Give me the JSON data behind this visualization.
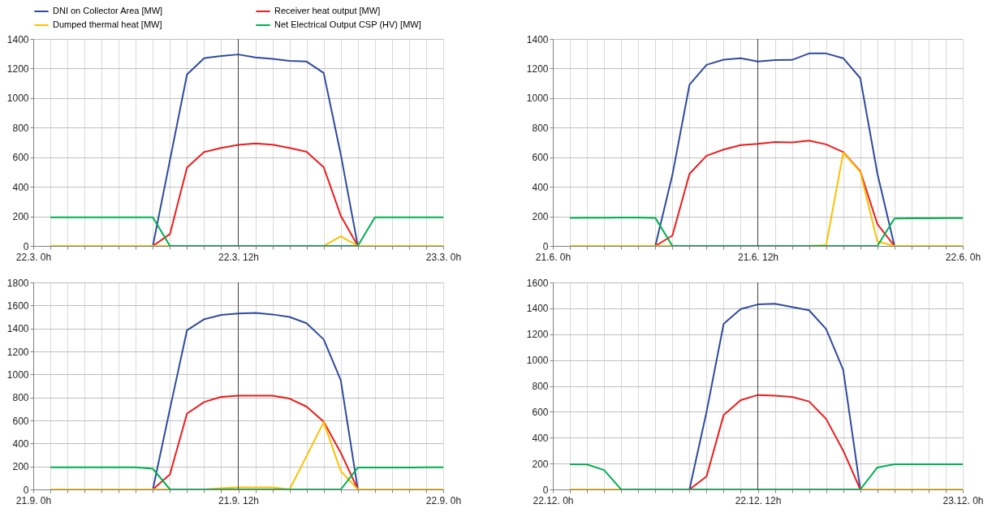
{
  "chart_data": [
    {
      "type": "line",
      "categories": [
        "22.3. 0h",
        null,
        null,
        null,
        null,
        null,
        null,
        null,
        null,
        null,
        null,
        null,
        "22.3. 12h",
        null,
        null,
        null,
        null,
        null,
        null,
        null,
        null,
        null,
        null,
        null,
        "23.3. 0h"
      ],
      "ylim": [
        0,
        1400
      ],
      "yticks": [
        0,
        200,
        400,
        600,
        800,
        1000,
        1200,
        1400
      ],
      "grid": true,
      "legend": "top",
      "ref_lines": [
        {
          "axis": "x",
          "value": "22.3. 12h"
        }
      ],
      "series": [
        {
          "name": "DNI on Collector Area [MW]",
          "color": "#2f4b9f",
          "values": [
            null,
            null,
            null,
            null,
            null,
            null,
            null,
            0,
            580,
            1160,
            1270,
            1285,
            1295,
            1275,
            1265,
            1252,
            1247,
            1170,
            620,
            0,
            null,
            null,
            null,
            null,
            null
          ]
        },
        {
          "name": "Receiver heat output [MW]",
          "color": "#ee1c1c",
          "values": [
            null,
            null,
            null,
            null,
            null,
            null,
            null,
            0,
            80,
            530,
            635,
            663,
            683,
            693,
            685,
            663,
            637,
            533,
            205,
            0,
            null,
            null,
            null,
            null,
            null
          ]
        },
        {
          "name": "Dumped thermal heat [MW]",
          "color": "#ffc000",
          "values": [
            null,
            0,
            0,
            0,
            0,
            0,
            0,
            0,
            0,
            null,
            null,
            null,
            null,
            null,
            null,
            null,
            null,
            0,
            65,
            0,
            0,
            0,
            0,
            0,
            0
          ]
        },
        {
          "name": "Net Electrical Output CSP (HV) [MW]",
          "color": "#00b050",
          "values": [
            null,
            193,
            193,
            193,
            193,
            193,
            193,
            193,
            0,
            0,
            0,
            0,
            0,
            0,
            0,
            0,
            0,
            0,
            0,
            0,
            193,
            193,
            193,
            193,
            193
          ]
        }
      ]
    },
    {
      "type": "line",
      "categories": [
        "21.6. 0h",
        null,
        null,
        null,
        null,
        null,
        null,
        null,
        null,
        null,
        null,
        null,
        "21.6. 12h",
        null,
        null,
        null,
        null,
        null,
        null,
        null,
        null,
        null,
        null,
        null,
        "22.6. 0h"
      ],
      "ylim": [
        0,
        1400
      ],
      "yticks": [
        0,
        200,
        400,
        600,
        800,
        1000,
        1200,
        1400
      ],
      "grid": true,
      "legend": "top",
      "ref_lines": [
        {
          "axis": "x",
          "value": "21.6. 12h"
        }
      ],
      "series": [
        {
          "name": "DNI on Collector Area [MW]",
          "color": "#2f4b9f",
          "values": [
            null,
            null,
            null,
            null,
            null,
            null,
            0,
            480,
            1090,
            1225,
            1260,
            1270,
            1248,
            1257,
            1258,
            1302,
            1302,
            1270,
            1135,
            490,
            0,
            null,
            null,
            null,
            null
          ]
        },
        {
          "name": "Receiver heat output [MW]",
          "color": "#ee1c1c",
          "values": [
            null,
            null,
            null,
            null,
            null,
            null,
            0,
            70,
            487,
            610,
            652,
            682,
            690,
            703,
            700,
            712,
            687,
            635,
            505,
            148,
            0,
            null,
            null,
            null,
            null
          ]
        },
        {
          "name": "Dumped thermal heat [MW]",
          "color": "#ffc000",
          "values": [
            null,
            0,
            0,
            0,
            0,
            0,
            0,
            0,
            null,
            null,
            null,
            null,
            null,
            null,
            null,
            0,
            5,
            630,
            500,
            30,
            0,
            0,
            0,
            0,
            0
          ]
        },
        {
          "name": "Net Electrical Output CSP (HV) [MW]",
          "color": "#00b050",
          "values": [
            null,
            190,
            191,
            191,
            192,
            192,
            190,
            0,
            0,
            0,
            0,
            0,
            0,
            0,
            0,
            0,
            0,
            0,
            0,
            0,
            185,
            186,
            187,
            188,
            188
          ]
        }
      ]
    },
    {
      "type": "line",
      "categories": [
        "21.9. 0h",
        null,
        null,
        null,
        null,
        null,
        null,
        null,
        null,
        null,
        null,
        null,
        "21.9. 12h",
        null,
        null,
        null,
        null,
        null,
        null,
        null,
        null,
        null,
        null,
        null,
        "22.9. 0h"
      ],
      "ylim": [
        0,
        1800
      ],
      "yticks": [
        0,
        200,
        400,
        600,
        800,
        1000,
        1200,
        1400,
        1600,
        1800
      ],
      "grid": true,
      "ref_lines": [
        {
          "axis": "x",
          "value": "21.9. 12h"
        }
      ],
      "series": [
        {
          "name": "DNI on Collector Area [MW]",
          "color": "#2f4b9f",
          "values": [
            null,
            null,
            null,
            null,
            null,
            null,
            null,
            0,
            700,
            1385,
            1480,
            1518,
            1530,
            1535,
            1522,
            1500,
            1445,
            1305,
            950,
            0,
            null,
            null,
            null,
            null,
            null
          ]
        },
        {
          "name": "Receiver heat output [MW]",
          "color": "#ee1c1c",
          "values": [
            null,
            null,
            null,
            null,
            null,
            null,
            null,
            0,
            130,
            660,
            760,
            805,
            815,
            815,
            815,
            790,
            720,
            590,
            320,
            0,
            null,
            null,
            null,
            null,
            null
          ]
        },
        {
          "name": "Dumped thermal heat [MW]",
          "color": "#ffc000",
          "values": [
            null,
            0,
            0,
            0,
            0,
            0,
            0,
            0,
            0,
            null,
            0,
            10,
            18,
            18,
            18,
            0,
            290,
            585,
            160,
            0,
            0,
            0,
            0,
            0,
            0
          ]
        },
        {
          "name": "Net Electrical Output CSP (HV) [MW]",
          "color": "#00b050",
          "values": [
            null,
            193,
            193,
            193,
            193,
            193,
            193,
            180,
            0,
            0,
            0,
            0,
            0,
            0,
            0,
            0,
            0,
            0,
            0,
            190,
            190,
            191,
            191,
            192,
            192
          ]
        }
      ]
    },
    {
      "type": "line",
      "categories": [
        "22.12. 0h",
        null,
        null,
        null,
        null,
        null,
        null,
        null,
        null,
        null,
        null,
        null,
        "22.12. 12h",
        null,
        null,
        null,
        null,
        null,
        null,
        null,
        null,
        null,
        null,
        null,
        "23.12. 0h"
      ],
      "ylim": [
        0,
        1600
      ],
      "yticks": [
        0,
        200,
        400,
        600,
        800,
        1000,
        1200,
        1400,
        1600
      ],
      "grid": true,
      "ref_lines": [
        {
          "axis": "x",
          "value": "22.12. 12h"
        }
      ],
      "series": [
        {
          "name": "DNI on Collector Area [MW]",
          "color": "#2f4b9f",
          "values": [
            null,
            null,
            null,
            null,
            null,
            null,
            null,
            null,
            0,
            600,
            1280,
            1395,
            1430,
            1435,
            1410,
            1385,
            1240,
            925,
            0,
            null,
            null,
            null,
            null,
            null,
            null
          ]
        },
        {
          "name": "Receiver heat output [MW]",
          "color": "#ee1c1c",
          "values": [
            null,
            null,
            null,
            null,
            null,
            null,
            null,
            null,
            0,
            100,
            575,
            690,
            730,
            725,
            715,
            680,
            545,
            300,
            0,
            null,
            null,
            null,
            null,
            null,
            null
          ]
        },
        {
          "name": "Dumped thermal heat [MW]",
          "color": "#ffc000",
          "values": [
            null,
            0,
            0,
            0,
            0,
            null,
            null,
            null,
            null,
            null,
            null,
            null,
            null,
            null,
            null,
            null,
            null,
            null,
            0,
            0,
            0,
            0,
            0,
            0,
            0
          ]
        },
        {
          "name": "Net Electrical Output CSP (HV) [MW]",
          "color": "#00b050",
          "values": [
            null,
            195,
            193,
            150,
            0,
            0,
            0,
            0,
            0,
            0,
            0,
            0,
            0,
            0,
            0,
            0,
            0,
            0,
            0,
            170,
            195,
            195,
            195,
            195,
            195
          ]
        }
      ]
    }
  ]
}
